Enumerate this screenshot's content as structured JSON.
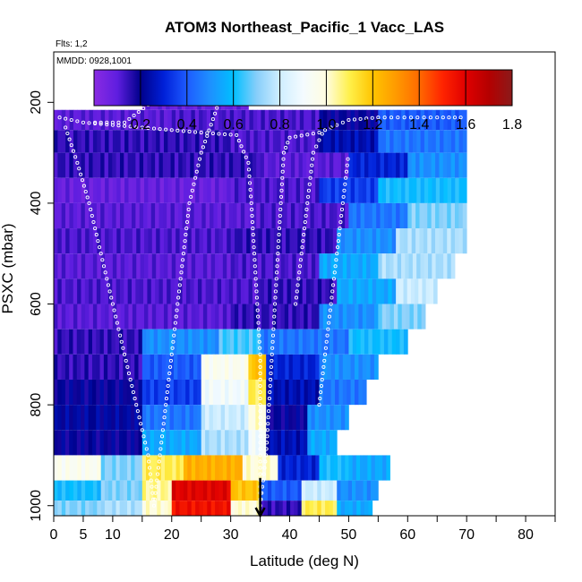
{
  "chart_data": {
    "type": "heatmap",
    "title": "ATOM3 Northeast_Pacific_1 Vacc_LAS",
    "subtitle_flights": "Flts: 1,2",
    "subtitle_dates": "MMDD: 0928,1001",
    "xlabel": "Latitude (deg N)",
    "ylabel": "PSXC (mbar)",
    "xlim": [
      0,
      85
    ],
    "ylim": [
      1020,
      100
    ],
    "x_ticks": [
      0,
      5,
      10,
      20,
      30,
      40,
      50,
      60,
      70,
      80
    ],
    "x_tick_labels": [
      "0",
      "5",
      "10",
      "20",
      "30",
      "40",
      "50",
      "60",
      "70",
      "80"
    ],
    "x_minor_ticks": [
      15,
      25,
      35,
      45,
      55,
      65,
      75,
      85
    ],
    "y_ticks": [
      200,
      400,
      600,
      800,
      1000
    ],
    "y_tick_labels": [
      "200",
      "400",
      "600",
      "800",
      "1000"
    ],
    "colorbar": {
      "min": 0,
      "max": 1.8,
      "ticks": [
        0.2,
        0.4,
        0.6,
        0.8,
        1.0,
        1.2,
        1.4,
        1.6,
        1.8
      ],
      "tick_labels": [
        "0.2",
        "0.4",
        "0.6",
        "0.8",
        "1.0",
        "1.2",
        "1.4",
        "1.6",
        "1.8"
      ],
      "stops": [
        {
          "v": 0.0,
          "color": "#8a2be2"
        },
        {
          "v": 0.1,
          "color": "#5f1ee0"
        },
        {
          "v": 0.2,
          "color": "#00008b"
        },
        {
          "v": 0.3,
          "color": "#0020d8"
        },
        {
          "v": 0.4,
          "color": "#1e5bff"
        },
        {
          "v": 0.5,
          "color": "#1e90ff"
        },
        {
          "v": 0.6,
          "color": "#00bfff"
        },
        {
          "v": 0.7,
          "color": "#87cefa"
        },
        {
          "v": 0.8,
          "color": "#cfeeff"
        },
        {
          "v": 0.9,
          "color": "#f4fbff"
        },
        {
          "v": 1.0,
          "color": "#fffde0"
        },
        {
          "v": 1.1,
          "color": "#fff04a"
        },
        {
          "v": 1.2,
          "color": "#ffc400"
        },
        {
          "v": 1.3,
          "color": "#ff9a00"
        },
        {
          "v": 1.4,
          "color": "#ff6a00"
        },
        {
          "v": 1.5,
          "color": "#ff2400"
        },
        {
          "v": 1.6,
          "color": "#e00000"
        },
        {
          "v": 1.7,
          "color": "#b40000"
        },
        {
          "v": 1.8,
          "color": "#8b1a1a"
        }
      ]
    },
    "pressure_bands": [
      {
        "p": [
          185,
          215
        ],
        "lat": [
          15,
          33
        ],
        "segments": [
          [
            15,
            33,
            0.08
          ]
        ]
      },
      {
        "p": [
          215,
          255
        ],
        "lat": [
          0,
          70
        ],
        "segments": [
          [
            0,
            20,
            0.1
          ],
          [
            20,
            45,
            0.12
          ],
          [
            45,
            55,
            0.2
          ],
          [
            55,
            70,
            0.4
          ]
        ]
      },
      {
        "p": [
          255,
          300
        ],
        "lat": [
          0,
          70
        ],
        "segments": [
          [
            0,
            30,
            0.15
          ],
          [
            30,
            45,
            0.12
          ],
          [
            45,
            55,
            0.25
          ],
          [
            55,
            70,
            0.45
          ]
        ]
      },
      {
        "p": [
          300,
          350
        ],
        "lat": [
          0,
          70
        ],
        "segments": [
          [
            0,
            35,
            0.15
          ],
          [
            35,
            50,
            0.1
          ],
          [
            50,
            60,
            0.3
          ],
          [
            60,
            70,
            0.5
          ]
        ]
      },
      {
        "p": [
          350,
          400
        ],
        "lat": [
          0,
          70
        ],
        "segments": [
          [
            0,
            30,
            0.08
          ],
          [
            30,
            45,
            0.12
          ],
          [
            45,
            55,
            0.35
          ],
          [
            55,
            70,
            0.6
          ]
        ]
      },
      {
        "p": [
          400,
          450
        ],
        "lat": [
          0,
          70
        ],
        "segments": [
          [
            0,
            35,
            0.1
          ],
          [
            35,
            50,
            0.12
          ],
          [
            50,
            60,
            0.45
          ],
          [
            60,
            70,
            0.7
          ]
        ]
      },
      {
        "p": [
          450,
          500
        ],
        "lat": [
          0,
          70
        ],
        "segments": [
          [
            0,
            30,
            0.12
          ],
          [
            30,
            48,
            0.15
          ],
          [
            48,
            58,
            0.5
          ],
          [
            58,
            70,
            0.75
          ]
        ]
      },
      {
        "p": [
          500,
          550
        ],
        "lat": [
          0,
          68
        ],
        "segments": [
          [
            0,
            30,
            0.1
          ],
          [
            30,
            45,
            0.12
          ],
          [
            45,
            55,
            0.55
          ],
          [
            55,
            68,
            0.75
          ]
        ]
      },
      {
        "p": [
          550,
          600
        ],
        "lat": [
          0,
          65
        ],
        "segments": [
          [
            0,
            35,
            0.12
          ],
          [
            35,
            48,
            0.15
          ],
          [
            48,
            58,
            0.55
          ],
          [
            58,
            65,
            0.8
          ]
        ]
      },
      {
        "p": [
          600,
          650
        ],
        "lat": [
          0,
          63
        ],
        "segments": [
          [
            0,
            30,
            0.1
          ],
          [
            30,
            45,
            0.15
          ],
          [
            45,
            55,
            0.5
          ],
          [
            55,
            63,
            0.7
          ]
        ]
      },
      {
        "p": [
          650,
          700
        ],
        "lat": [
          0,
          60
        ],
        "segments": [
          [
            0,
            15,
            0.15
          ],
          [
            15,
            28,
            0.5
          ],
          [
            28,
            35,
            0.65
          ],
          [
            35,
            50,
            0.45
          ],
          [
            50,
            60,
            0.6
          ]
        ]
      },
      {
        "p": [
          700,
          750
        ],
        "lat": [
          0,
          55
        ],
        "segments": [
          [
            0,
            15,
            0.15
          ],
          [
            15,
            25,
            0.4
          ],
          [
            25,
            33,
            0.95
          ],
          [
            33,
            36,
            1.2
          ],
          [
            36,
            45,
            0.3
          ],
          [
            45,
            55,
            0.5
          ]
        ]
      },
      {
        "p": [
          750,
          800
        ],
        "lat": [
          0,
          53
        ],
        "segments": [
          [
            0,
            15,
            0.2
          ],
          [
            15,
            25,
            0.35
          ],
          [
            25,
            33,
            0.9
          ],
          [
            33,
            36,
            1.1
          ],
          [
            36,
            45,
            0.25
          ],
          [
            45,
            53,
            0.45
          ]
        ]
      },
      {
        "p": [
          800,
          850
        ],
        "lat": [
          0,
          50
        ],
        "segments": [
          [
            0,
            15,
            0.22
          ],
          [
            15,
            25,
            0.45
          ],
          [
            25,
            33,
            0.8
          ],
          [
            33,
            36,
            1.0
          ],
          [
            36,
            43,
            0.2
          ],
          [
            43,
            50,
            0.5
          ]
        ]
      },
      {
        "p": [
          850,
          900
        ],
        "lat": [
          0,
          48
        ],
        "segments": [
          [
            0,
            15,
            0.2
          ],
          [
            15,
            25,
            0.55
          ],
          [
            25,
            33,
            0.75
          ],
          [
            33,
            36,
            0.9
          ],
          [
            36,
            43,
            0.25
          ],
          [
            43,
            48,
            0.55
          ]
        ]
      },
      {
        "p": [
          900,
          950
        ],
        "lat": [
          0,
          57
        ],
        "segments": [
          [
            0,
            8,
            0.95
          ],
          [
            8,
            15,
            0.7
          ],
          [
            15,
            22,
            1.1
          ],
          [
            22,
            32,
            1.25
          ],
          [
            32,
            38,
            1.0
          ],
          [
            38,
            45,
            0.3
          ],
          [
            45,
            50,
            0.6
          ],
          [
            50,
            57,
            0.55
          ]
        ]
      },
      {
        "p": [
          950,
          990
        ],
        "lat": [
          0,
          55
        ],
        "segments": [
          [
            0,
            8,
            0.6
          ],
          [
            8,
            15,
            0.7
          ],
          [
            15,
            20,
            1.05
          ],
          [
            20,
            30,
            1.6
          ],
          [
            30,
            35,
            1.2
          ],
          [
            35,
            42,
            0.4
          ],
          [
            42,
            48,
            0.8
          ],
          [
            48,
            55,
            0.5
          ]
        ]
      },
      {
        "p": [
          990,
          1020
        ],
        "lat": [
          0,
          54
        ],
        "segments": [
          [
            0,
            8,
            0.7
          ],
          [
            8,
            15,
            0.75
          ],
          [
            15,
            20,
            1.0
          ],
          [
            20,
            30,
            1.55
          ],
          [
            30,
            35,
            1.0
          ],
          [
            35,
            42,
            0.15
          ],
          [
            42,
            48,
            1.1
          ],
          [
            48,
            54,
            0.55
          ]
        ]
      }
    ],
    "flight_tracks": [
      [
        [
          1,
          230
        ],
        [
          5,
          240
        ],
        [
          10,
          245
        ],
        [
          15,
          250
        ],
        [
          20,
          255
        ],
        [
          25,
          260
        ],
        [
          31,
          265
        ],
        [
          33,
          320
        ],
        [
          33.5,
          400
        ],
        [
          34,
          500
        ],
        [
          34.5,
          600
        ],
        [
          35,
          700
        ],
        [
          35,
          800
        ],
        [
          35,
          900
        ],
        [
          35,
          1000
        ]
      ],
      [
        [
          35,
          1000
        ],
        [
          36,
          900
        ],
        [
          36.5,
          800
        ],
        [
          37,
          700
        ],
        [
          37.5,
          600
        ],
        [
          38,
          500
        ],
        [
          38.5,
          400
        ],
        [
          39,
          300
        ],
        [
          40,
          270
        ],
        [
          45,
          260
        ],
        [
          50,
          235
        ],
        [
          55,
          230
        ],
        [
          65,
          230
        ],
        [
          70,
          230
        ]
      ],
      [
        [
          2,
          250
        ],
        [
          4,
          320
        ],
        [
          6,
          400
        ],
        [
          8,
          500
        ],
        [
          10,
          600
        ],
        [
          12,
          700
        ],
        [
          14,
          800
        ],
        [
          16,
          900
        ],
        [
          17,
          1000
        ]
      ],
      [
        [
          17,
          1000
        ],
        [
          18,
          900
        ],
        [
          19,
          800
        ],
        [
          20,
          700
        ],
        [
          21,
          600
        ],
        [
          22,
          500
        ],
        [
          23,
          400
        ],
        [
          25,
          300
        ],
        [
          28,
          200
        ],
        [
          31,
          195
        ]
      ],
      [
        [
          41,
          600
        ],
        [
          42,
          500
        ],
        [
          43,
          400
        ],
        [
          44,
          300
        ],
        [
          46,
          250
        ]
      ],
      [
        [
          45,
          800
        ],
        [
          46,
          700
        ],
        [
          47,
          600
        ],
        [
          48,
          500
        ],
        [
          49,
          400
        ],
        [
          50,
          300
        ]
      ],
      [
        [
          7,
          240
        ],
        [
          12,
          240
        ],
        [
          16,
          205
        ],
        [
          20,
          200
        ],
        [
          24,
          200
        ],
        [
          28,
          195
        ]
      ]
    ],
    "annotation_arrow": {
      "lat": 35,
      "p_from": 945,
      "p_to": 1020
    }
  }
}
